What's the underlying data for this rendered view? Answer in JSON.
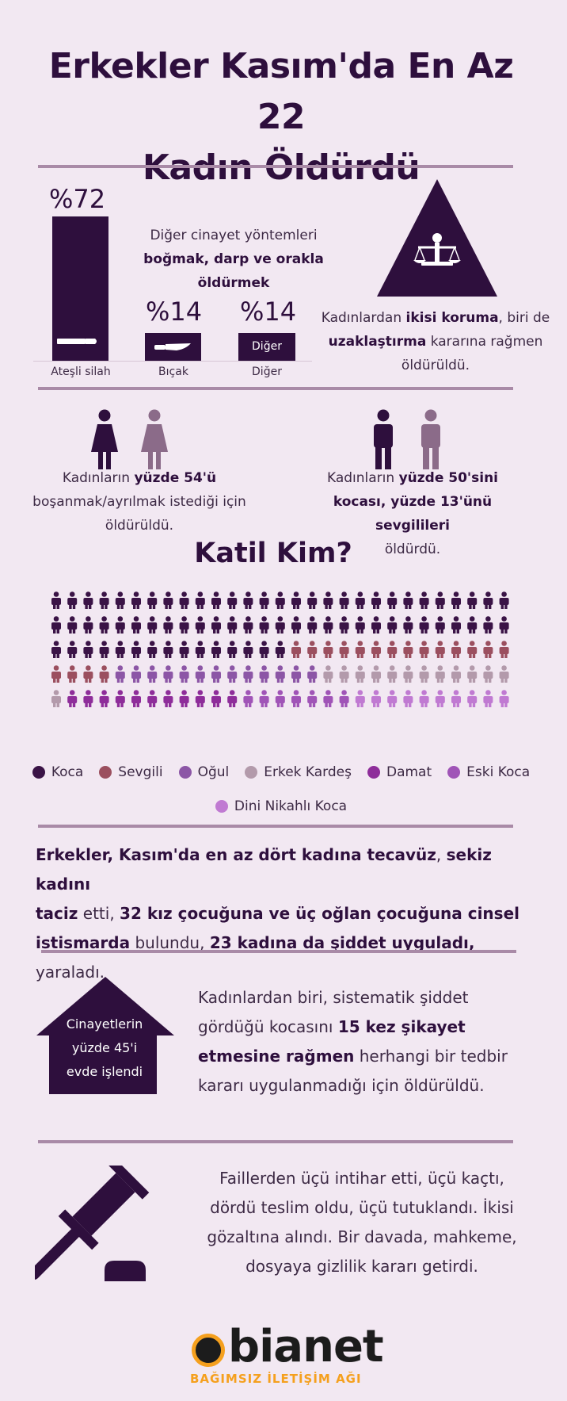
{
  "title": {
    "line1": "Erkekler Kasım'da En Az 22",
    "line2": "Kadın Öldürdü"
  },
  "methods": {
    "main_pct": "%72",
    "main_label": "Ateşli silah",
    "other_title_1": "Diğer cinayet yöntemleri",
    "other_title_2": "boğmak, darp ve orakla",
    "other_title_3": "öldürmek",
    "knife_pct": "%14",
    "knife_label": "Bıçak",
    "other_pct": "%14",
    "other_label": "Diğer",
    "other_bar_text": "Diğer"
  },
  "protection": {
    "t1": "Kadınlardan ",
    "b1": "ikisi koruma",
    "t2": ", biri de",
    "b2": "uzaklaştırma",
    "t3": " kararına rağmen",
    "t4": "öldürüldü."
  },
  "divorce": {
    "t1": "Kadınların ",
    "b1": "yüzde 54'ü",
    "t2": "boşanmak/ayrılmak istediği için",
    "t3": "öldürüldü."
  },
  "husbands": {
    "t1": "Kadınların ",
    "b1": "yüzde 50'sini",
    "b2": "kocası, yüzde 13'ünü sevgilileri",
    "t3": "öldürdü."
  },
  "katil_title": "Katil Kim?",
  "chart_data": {
    "type": "pictogram",
    "title": "Katil Kim?",
    "unit": "icon",
    "rows": 5,
    "columns": 29,
    "categories": [
      "Koca",
      "Sevgili",
      "Oğul",
      "Erkek Kardeş",
      "Damat",
      "Eski Koca",
      "Dini Nikahlı Koca"
    ],
    "colors": [
      "#3a1346",
      "#9b4f5f",
      "#8c56a6",
      "#b39aab",
      "#8e2d9a",
      "#a054b7",
      "#c07ad2"
    ],
    "values": [
      73,
      18,
      13,
      13,
      11,
      7,
      10
    ],
    "legend_position": "bottom"
  },
  "legend": [
    {
      "label": "Koca",
      "color": "#3a1346"
    },
    {
      "label": "Sevgili",
      "color": "#9b4f5f"
    },
    {
      "label": "Oğul",
      "color": "#8c56a6"
    },
    {
      "label": "Erkek Kardeş",
      "color": "#b39aab"
    },
    {
      "label": "Damat",
      "color": "#8e2d9a"
    },
    {
      "label": "Eski Koca",
      "color": "#a054b7"
    },
    {
      "label": "Dini Nikahlı Koca",
      "color": "#c07ad2"
    }
  ],
  "abuse": {
    "b1": "Erkekler, Kasım'da en az dört kadına tecavüz",
    "t1": ", ",
    "b2": "sekiz kadını",
    "b3": "taciz",
    "t2": " etti, ",
    "b4": "32 kız çocuğuna ve üç oğlan çocuğuna cinsel",
    "b5": "istismarda",
    "t3": " bulundu, ",
    "b6": "23 kadına da şiddet uyguladı,",
    "t4": " yaraladı."
  },
  "home": {
    "l1": "Cinayetlerin",
    "l2": "yüzde 45'i",
    "l3": "evde işlendi"
  },
  "complaint": {
    "t1": "Kadınlardan biri, sistematik şiddet",
    "t2": "gördüğü kocasını ",
    "b1": "15 kez şikayet",
    "b2": "etmesine rağmen",
    "t3": " herhangi bir tedbir",
    "t4": "kararı uygulanmadığı için öldürüldü."
  },
  "perpetrators": {
    "l1": "Faillerden üçü intihar etti, üçü kaçtı,",
    "l2": "dördü teslim oldu, üçü tutuklandı. İkisi",
    "l3": "gözaltına alındı. Bir davada, mahkeme,",
    "l4": "dosyaya gizlilik kararı getirdi."
  },
  "logo": {
    "name": "bianet",
    "tagline": "BAĞIMSIZ İLETİŞİM AĞI",
    "accent": "#f5a01e"
  },
  "colors": {
    "primary": "#2e0f3d",
    "background": "#f2e8f2",
    "rule": "#a98aa7"
  },
  "icons": [
    "bullet-icon",
    "knife-icon",
    "scales-of-justice-icon",
    "woman-icon",
    "man-icon",
    "house-icon",
    "gavel-icon"
  ]
}
